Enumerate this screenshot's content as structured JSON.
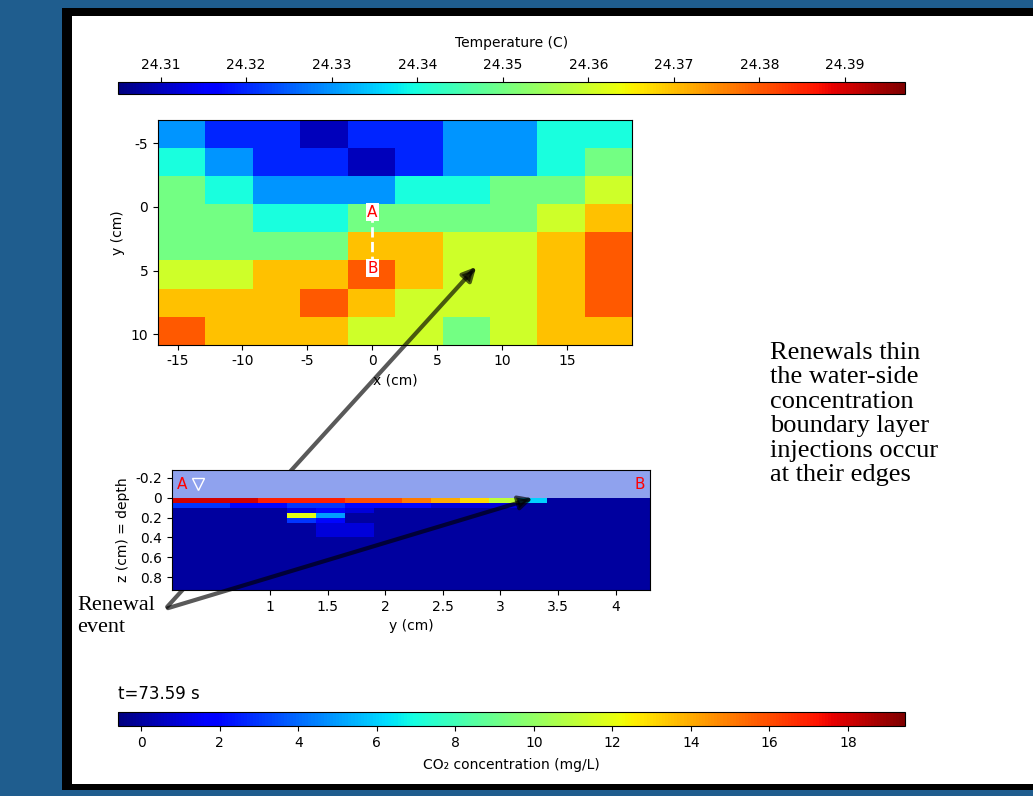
{
  "chart_data": [
    {
      "type": "heatmap",
      "x_label": "x (cm)",
      "y_label": "y (cm)",
      "xlim": [
        -16.5,
        20
      ],
      "ylim": [
        10.8,
        -6.8
      ],
      "xticks": [
        -15,
        -10,
        -5,
        0,
        5,
        10,
        15
      ],
      "yticks": [
        -5,
        0,
        5,
        10
      ],
      "grid": false,
      "x_edges": [
        -16.5,
        -12.85,
        -9.2,
        -5.55,
        -1.9,
        1.75,
        5.4,
        9.05,
        12.7,
        16.35,
        20
      ],
      "y_edges": [
        -6.8,
        -4.6,
        -2.4,
        -0.2,
        2.0,
        4.2,
        6.4,
        8.6,
        10.8
      ],
      "cells": [
        [
          24.33,
          24.32,
          24.32,
          24.31,
          24.32,
          24.32,
          24.33,
          24.33,
          24.34,
          24.34
        ],
        [
          24.34,
          24.33,
          24.32,
          24.32,
          24.31,
          24.32,
          24.33,
          24.33,
          24.34,
          24.35
        ],
        [
          24.35,
          24.34,
          24.33,
          24.33,
          24.33,
          24.34,
          24.34,
          24.35,
          24.35,
          24.36
        ],
        [
          24.35,
          24.35,
          24.34,
          24.34,
          24.35,
          24.35,
          24.35,
          24.35,
          24.36,
          24.37
        ],
        [
          24.35,
          24.35,
          24.35,
          24.35,
          24.37,
          24.37,
          24.36,
          24.36,
          24.37,
          24.38
        ],
        [
          24.36,
          24.36,
          24.37,
          24.37,
          24.38,
          24.37,
          24.36,
          24.36,
          24.37,
          24.38
        ],
        [
          24.37,
          24.37,
          24.37,
          24.38,
          24.37,
          24.36,
          24.36,
          24.36,
          24.37,
          24.38
        ],
        [
          24.38,
          24.37,
          24.37,
          24.37,
          24.36,
          24.36,
          24.35,
          24.36,
          24.37,
          24.37
        ]
      ],
      "colorbar_label": "Temperature (C)",
      "clim": [
        24.305,
        24.397
      ],
      "cticks": [
        24.31,
        24.32,
        24.33,
        24.34,
        24.35,
        24.36,
        24.37,
        24.38,
        24.39
      ],
      "section": {
        "x": 0,
        "y": [
          0.4,
          4.8
        ],
        "labels": [
          "A",
          "B"
        ]
      }
    },
    {
      "type": "heatmap",
      "x_label": "y (cm)",
      "y_label": "z (cm) = depth",
      "xlim": [
        0.15,
        4.3
      ],
      "ylim": [
        0.93,
        -0.28
      ],
      "xticks": [
        1,
        1.5,
        2,
        2.5,
        3,
        3.5,
        4
      ],
      "yticks": [
        -0.2,
        0,
        0.2,
        0.4,
        0.6,
        0.8
      ],
      "grid": false,
      "x_edges": [
        0.15,
        0.4,
        0.65,
        0.9,
        1.15,
        1.4,
        1.65,
        1.9,
        2.15,
        2.4,
        2.65,
        2.9,
        3.15,
        3.4,
        3.65,
        3.9,
        4.3
      ],
      "y_edges": [
        0,
        0.05,
        0.1,
        0.15,
        0.2,
        0.25,
        0.4,
        0.6,
        0.8,
        0.93
      ],
      "cells": [
        [
          18,
          18,
          18,
          17,
          17,
          17,
          16,
          16,
          15,
          14,
          13,
          11,
          6,
          0,
          0,
          0
        ],
        [
          3,
          3,
          2,
          2,
          3,
          3,
          2,
          2,
          2,
          1,
          1,
          1,
          0,
          0,
          0,
          0
        ],
        [
          0,
          0,
          0,
          0,
          1,
          2,
          1,
          0,
          0,
          0,
          0,
          0,
          0,
          0,
          0,
          0
        ],
        [
          0,
          0,
          0,
          0,
          12,
          5,
          0,
          0,
          0,
          0,
          0,
          0,
          0,
          0,
          0,
          0
        ],
        [
          0,
          0,
          0,
          0,
          3,
          2,
          0,
          0,
          0,
          0,
          0,
          0,
          0,
          0,
          0,
          0
        ],
        [
          0,
          0,
          0,
          0,
          0,
          1,
          1,
          0,
          0,
          0,
          0,
          0,
          0,
          0,
          0,
          0
        ],
        [
          0,
          0,
          0,
          0,
          0,
          0,
          0,
          0,
          0,
          0,
          0,
          0,
          0,
          0,
          0,
          0
        ],
        [
          0,
          0,
          0,
          0,
          0,
          0,
          0,
          0,
          0,
          0,
          0,
          0,
          0,
          0,
          0,
          0
        ],
        [
          0,
          0,
          0,
          0,
          0,
          0,
          0,
          0,
          0,
          0,
          0,
          0,
          0,
          0,
          0,
          0
        ]
      ],
      "colorbar_label": "CO₂ concentration (mg/L)",
      "clim": [
        -0.6,
        19.45
      ],
      "cticks": [
        0,
        2,
        4,
        6,
        8,
        10,
        12,
        14,
        16,
        18
      ],
      "section_labels": [
        "A",
        "B"
      ],
      "annotations": [
        "t=73.59 s"
      ]
    }
  ],
  "annotations": {
    "renewal_event": "Renewal\nevent",
    "note": [
      "Renewals thin",
      "the water-side",
      "concentration",
      "boundary layer",
      "injections occur",
      "at their edges"
    ]
  }
}
